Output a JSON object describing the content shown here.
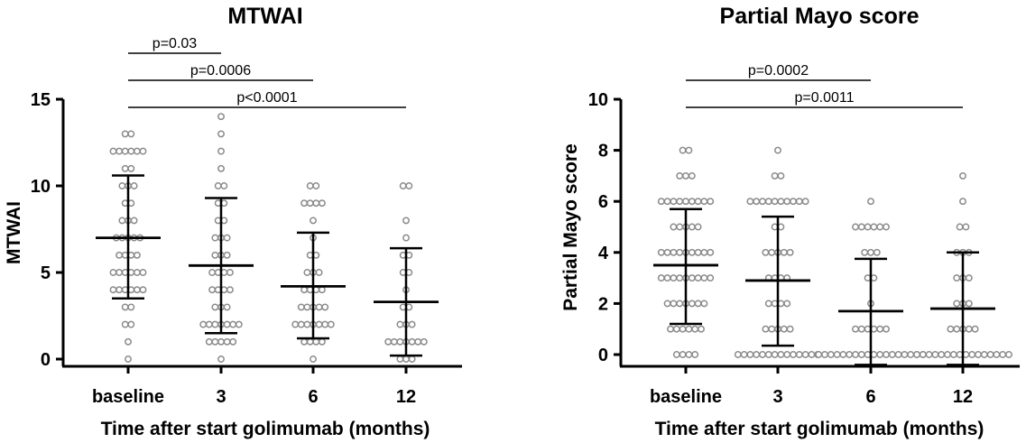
{
  "chart_data": [
    {
      "type": "scatter",
      "title": "MTWAI",
      "xlabel": "Time after start golimumab (months)",
      "ylabel": "MTWAI",
      "categories": [
        "baseline",
        "3",
        "6",
        "12"
      ],
      "ylim": [
        0,
        15
      ],
      "yticks": [
        "0",
        "5",
        "10",
        "15"
      ],
      "points": [
        [
          0,
          1,
          2,
          2,
          3,
          3,
          4,
          4,
          4,
          4,
          4,
          4,
          5,
          5,
          5,
          5,
          5,
          5,
          6,
          6,
          6,
          6,
          7,
          7,
          7,
          7,
          7,
          8,
          8,
          8,
          9,
          9,
          10,
          10,
          10,
          11,
          11,
          12,
          12,
          12,
          12,
          12,
          12,
          13,
          13
        ],
        [
          0,
          1,
          1,
          1,
          1,
          1,
          2,
          2,
          2,
          2,
          2,
          2,
          2,
          3,
          3,
          3,
          4,
          4,
          4,
          4,
          5,
          5,
          5,
          5,
          6,
          6,
          6,
          7,
          7,
          7,
          8,
          8,
          9,
          9,
          10,
          10,
          11,
          12,
          13,
          14
        ],
        [
          0,
          1,
          1,
          1,
          1,
          2,
          2,
          2,
          2,
          2,
          2,
          2,
          3,
          3,
          3,
          3,
          3,
          4,
          4,
          4,
          4,
          5,
          5,
          5,
          6,
          6,
          7,
          8,
          9,
          9,
          9,
          9,
          10,
          10
        ],
        [
          0,
          0,
          0,
          1,
          1,
          1,
          1,
          1,
          1,
          1,
          2,
          2,
          2,
          3,
          3,
          4,
          5,
          5,
          6,
          6,
          7,
          8,
          10,
          10
        ]
      ],
      "summary": [
        {
          "mean": 7.0,
          "sd_low": 3.5,
          "sd_high": 10.6
        },
        {
          "mean": 5.4,
          "sd_low": 1.5,
          "sd_high": 9.3
        },
        {
          "mean": 4.2,
          "sd_low": 1.2,
          "sd_high": 7.3
        },
        {
          "mean": 3.3,
          "sd_low": 0.2,
          "sd_high": 6.4
        }
      ],
      "comparisons": [
        {
          "from": "baseline",
          "to": "3",
          "label": "p=0.03"
        },
        {
          "from": "baseline",
          "to": "6",
          "label": "p=0.0006"
        },
        {
          "from": "baseline",
          "to": "12",
          "label": "p<0.0001"
        }
      ]
    },
    {
      "type": "scatter",
      "title": "Partial Mayo score",
      "xlabel": "Time after start golimumab (months)",
      "ylabel": "Partial Mayo score",
      "categories": [
        "baseline",
        "3",
        "6",
        "12"
      ],
      "ylim": [
        0,
        10
      ],
      "yticks": [
        "0",
        "2",
        "4",
        "6",
        "8",
        "10"
      ],
      "points": [
        [
          0,
          0,
          0,
          0,
          1,
          1,
          1,
          1,
          1,
          1,
          2,
          2,
          2,
          2,
          2,
          2,
          2,
          3,
          3,
          3,
          3,
          3,
          3,
          3,
          3,
          3,
          4,
          4,
          4,
          4,
          4,
          4,
          4,
          4,
          4,
          5,
          5,
          5,
          5,
          5,
          6,
          6,
          6,
          6,
          6,
          6,
          6,
          6,
          6,
          7,
          7,
          7,
          8,
          8
        ],
        [
          0,
          0,
          0,
          0,
          0,
          0,
          0,
          0,
          0,
          0,
          0,
          0,
          0,
          0,
          1,
          1,
          1,
          1,
          1,
          2,
          2,
          2,
          2,
          3,
          3,
          3,
          3,
          4,
          4,
          4,
          4,
          4,
          5,
          5,
          6,
          6,
          6,
          6,
          6,
          6,
          6,
          6,
          6,
          6,
          7,
          7,
          8
        ],
        [
          0,
          0,
          0,
          0,
          0,
          0,
          0,
          0,
          0,
          0,
          0,
          0,
          0,
          0,
          0,
          0,
          0,
          0,
          1,
          1,
          1,
          1,
          1,
          1,
          2,
          3,
          3,
          4,
          4,
          4,
          5,
          5,
          5,
          5,
          5,
          5,
          6
        ],
        [
          0,
          0,
          0,
          0,
          0,
          0,
          0,
          0,
          0,
          0,
          0,
          0,
          0,
          0,
          0,
          0,
          1,
          1,
          1,
          1,
          1,
          2,
          2,
          2,
          3,
          3,
          3,
          4,
          4,
          4,
          5,
          5,
          6,
          7
        ]
      ],
      "summary": [
        {
          "mean": 3.5,
          "sd_low": 1.2,
          "sd_high": 5.7
        },
        {
          "mean": 2.9,
          "sd_low": 0.35,
          "sd_high": 5.4
        },
        {
          "mean": 1.7,
          "sd_low": -0.4,
          "sd_high": 3.75
        },
        {
          "mean": 1.8,
          "sd_low": -0.4,
          "sd_high": 4.0
        }
      ],
      "comparisons": [
        {
          "from": "baseline",
          "to": "6",
          "label": "p=0.0002"
        },
        {
          "from": "baseline",
          "to": "12",
          "label": "p=0.0011"
        }
      ]
    }
  ]
}
